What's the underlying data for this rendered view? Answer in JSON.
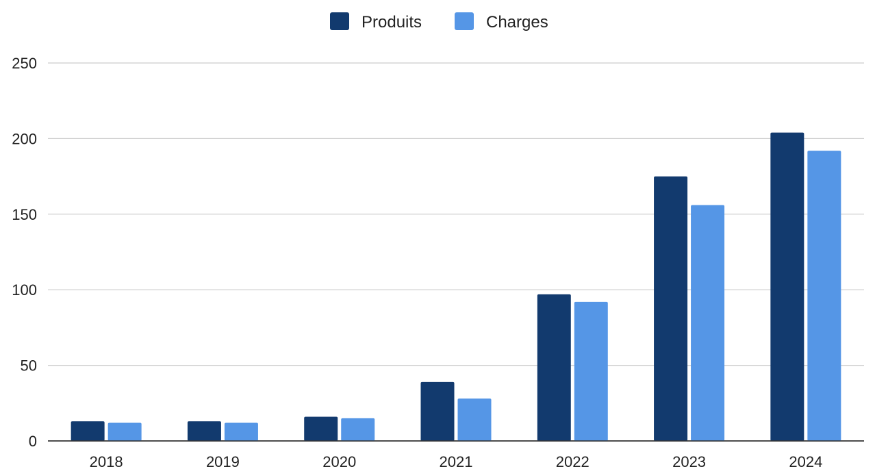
{
  "chart_data": {
    "type": "bar",
    "categories": [
      "2018",
      "2019",
      "2020",
      "2021",
      "2022",
      "2023",
      "2024"
    ],
    "series": [
      {
        "name": "Produits",
        "color": "#123a6e",
        "values": [
          13,
          13,
          16,
          39,
          97,
          175,
          204
        ]
      },
      {
        "name": "Charges",
        "color": "#5596e6",
        "values": [
          12,
          12,
          15,
          28,
          92,
          156,
          192
        ]
      }
    ],
    "y_ticks": [
      "0",
      "50",
      "100",
      "150",
      "200",
      "250"
    ],
    "ylim": [
      0,
      250
    ],
    "grid": true,
    "legend_position": "top-center",
    "title": "",
    "xlabel": "",
    "ylabel": ""
  }
}
